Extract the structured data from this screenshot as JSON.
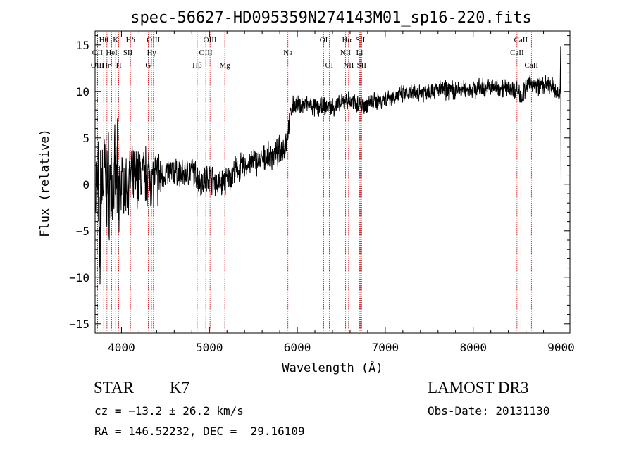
{
  "chart_data": {
    "type": "line",
    "title": "spec-56627-HD095359N274143M01_sp16-220.fits",
    "xlabel": "Wavelength (Å)",
    "ylabel": "Flux (relative)",
    "xlim": [
      3700,
      9100
    ],
    "ylim": [
      -16,
      16.5
    ],
    "xticks": [
      4000,
      5000,
      6000,
      7000,
      8000,
      9000
    ],
    "yticks": [
      -15,
      -10,
      -5,
      0,
      5,
      10,
      15
    ],
    "series": [
      {
        "name": "spectrum",
        "x": [
          3700,
          3750,
          3800,
          3850,
          3900,
          3950,
          4000,
          4050,
          4100,
          4200,
          4300,
          4400,
          4500,
          4600,
          4700,
          4800,
          4900,
          5000,
          5100,
          5200,
          5300,
          5400,
          5500,
          5600,
          5700,
          5800,
          5850,
          5880,
          5920,
          5950,
          6000,
          6100,
          6200,
          6300,
          6400,
          6500,
          6560,
          6600,
          6700,
          6800,
          7000,
          7200,
          7400,
          7600,
          7800,
          8000,
          8200,
          8400,
          8500,
          8550,
          8600,
          8650,
          8700,
          8800,
          8900,
          8950,
          9000
        ],
        "y": [
          0.5,
          -1.0,
          1.0,
          0.2,
          -0.5,
          0.5,
          0.3,
          0.0,
          0.6,
          0.8,
          1.0,
          0.5,
          1.2,
          1.3,
          1.0,
          1.5,
          0.3,
          0.8,
          0.0,
          0.4,
          1.5,
          2.0,
          2.4,
          2.6,
          3.0,
          3.6,
          4.2,
          4.8,
          7.5,
          8.5,
          8.5,
          8.6,
          8.2,
          8.4,
          8.3,
          8.6,
          9.2,
          8.8,
          8.7,
          8.6,
          9.3,
          9.6,
          9.9,
          10.2,
          10.1,
          10.3,
          10.4,
          10.4,
          10.2,
          9.5,
          10.3,
          11.0,
          10.6,
          10.7,
          10.5,
          9.8,
          9.6
        ]
      }
    ],
    "lines": [
      {
        "label": "Hθ",
        "wave": 3798,
        "row": 0
      },
      {
        "label": "OII",
        "wave": 3727,
        "row": 1
      },
      {
        "label": "OIII",
        "wave": 3727,
        "row": 2
      },
      {
        "label": "Hη",
        "wave": 3835,
        "row": 2
      },
      {
        "label": "K",
        "wave": 3934,
        "row": 0
      },
      {
        "label": "HeI",
        "wave": 3889,
        "row": 1
      },
      {
        "label": "H",
        "wave": 3969,
        "row": 2
      },
      {
        "label": "SII",
        "wave": 4072,
        "row": 1
      },
      {
        "label": "Hδ",
        "wave": 4102,
        "row": 0
      },
      {
        "label": "OIII",
        "wave": 4363,
        "row": 0
      },
      {
        "label": "Hγ",
        "wave": 4341,
        "row": 1
      },
      {
        "label": "G",
        "wave": 4304,
        "row": 2
      },
      {
        "label": "Hβ",
        "wave": 4861,
        "row": 2
      },
      {
        "label": "OIII",
        "wave": 5007,
        "row": 0
      },
      {
        "label": "OIII",
        "wave": 4959,
        "row": 1
      },
      {
        "label": "Mg",
        "wave": 5175,
        "row": 2
      },
      {
        "label": "Na",
        "wave": 5893,
        "row": 1
      },
      {
        "label": "OI",
        "wave": 6300,
        "row": 0
      },
      {
        "label": "OI",
        "wave": 6363,
        "row": 2
      },
      {
        "label": "Hα",
        "wave": 6563,
        "row": 0
      },
      {
        "label": "NII",
        "wave": 6548,
        "row": 1
      },
      {
        "label": "NII",
        "wave": 6583,
        "row": 2
      },
      {
        "label": "SII",
        "wave": 6717,
        "row": 0
      },
      {
        "label": "Li",
        "wave": 6708,
        "row": 1
      },
      {
        "label": "SII",
        "wave": 6731,
        "row": 2
      },
      {
        "label": "CaII",
        "wave": 8542,
        "row": 0
      },
      {
        "label": "CaII",
        "wave": 8498,
        "row": 1
      },
      {
        "label": "CaII",
        "wave": 8662,
        "row": 2
      }
    ]
  },
  "info": {
    "object_class": "STAR",
    "subclass": "K7",
    "cz": "cz = −13.2 ± 26.2 km/s",
    "coords": "RA = 146.52232, DEC =  29.16109",
    "survey": "LAMOST DR3",
    "obs_date": "Obs-Date: 20131130"
  },
  "colors": {
    "spectrum": "#000000",
    "line_marker": "#c00000",
    "axis": "#000000"
  }
}
